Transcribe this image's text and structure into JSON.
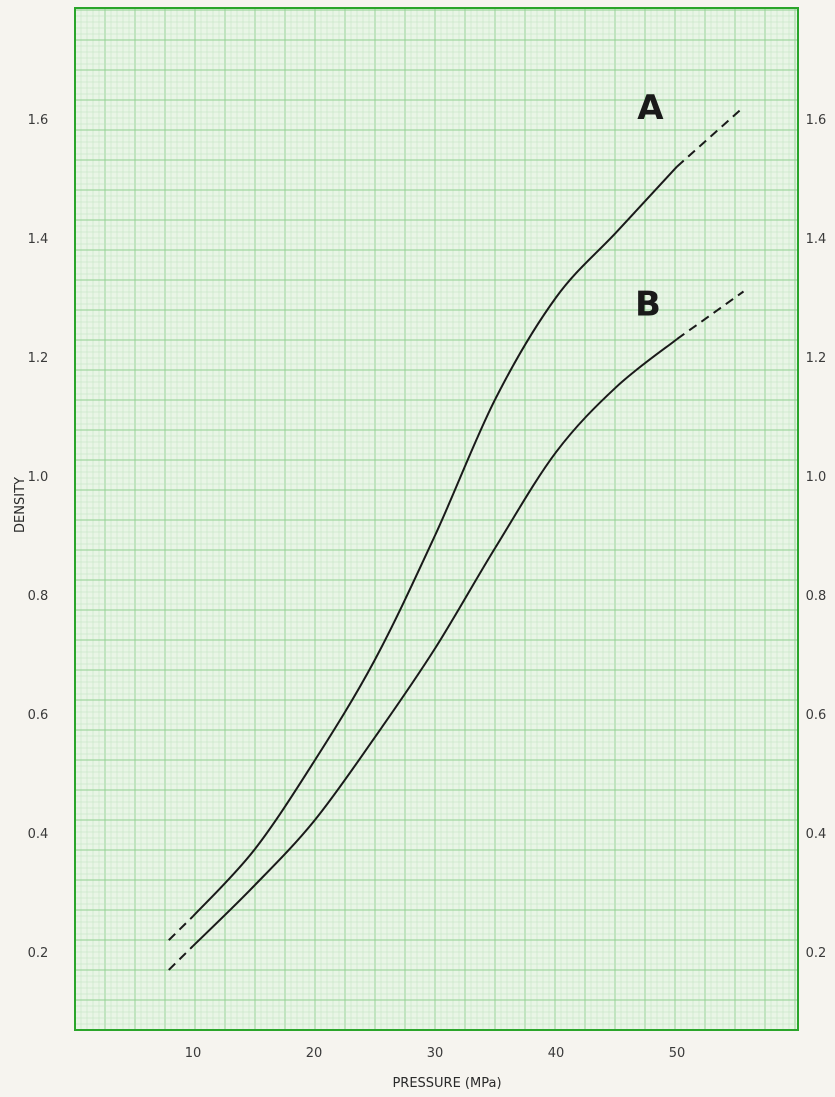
{
  "chart_data": {
    "type": "line",
    "xlabel": "PRESSURE (MPa)",
    "ylabel": "DENSITY",
    "xlim": [
      0,
      60
    ],
    "ylim": [
      0,
      1.7
    ],
    "x_ticks": [
      10,
      20,
      30,
      40,
      50
    ],
    "x_tick_labels": [
      "10",
      "20",
      "30",
      "40",
      "50"
    ],
    "y_ticks": [
      0.2,
      0.4,
      0.6,
      0.8,
      1.0,
      1.2,
      1.4,
      1.6
    ],
    "y_tick_labels": [
      "0.2",
      "0.4",
      "0.6",
      "0.8",
      "1.0",
      "1.2",
      "1.4",
      "1.6"
    ],
    "y_tick_labels_right": [
      "0.2",
      "0.4",
      "0.6",
      "0.8",
      "1.0",
      "1.2",
      "1.4",
      "1.6"
    ],
    "grid": true,
    "colors": {
      "grid_fine": "#bfe3bf",
      "grid_major": "#8fd08f",
      "frame": "#2aa52a",
      "plot_bg": "#e9f5e6",
      "curve": "#1a1a1a"
    },
    "series": [
      {
        "name": "A",
        "dashed_start": [
          [
            8,
            0.22
          ],
          [
            10,
            0.26
          ]
        ],
        "solid": [
          [
            10,
            0.26
          ],
          [
            15,
            0.37
          ],
          [
            20,
            0.52
          ],
          [
            25,
            0.69
          ],
          [
            30,
            0.9
          ],
          [
            35,
            1.13
          ],
          [
            40,
            1.3
          ],
          [
            45,
            1.41
          ],
          [
            50,
            1.52
          ]
        ],
        "dashed_end": [
          [
            50,
            1.52
          ],
          [
            55.5,
            1.62
          ]
        ]
      },
      {
        "name": "B",
        "dashed_start": [
          [
            8,
            0.17
          ],
          [
            10,
            0.21
          ]
        ],
        "solid": [
          [
            10,
            0.21
          ],
          [
            15,
            0.31
          ],
          [
            20,
            0.42
          ],
          [
            25,
            0.56
          ],
          [
            30,
            0.71
          ],
          [
            35,
            0.88
          ],
          [
            40,
            1.04
          ],
          [
            45,
            1.15
          ],
          [
            50,
            1.23
          ]
        ],
        "dashed_end": [
          [
            50,
            1.23
          ],
          [
            55.5,
            1.31
          ]
        ]
      }
    ]
  }
}
